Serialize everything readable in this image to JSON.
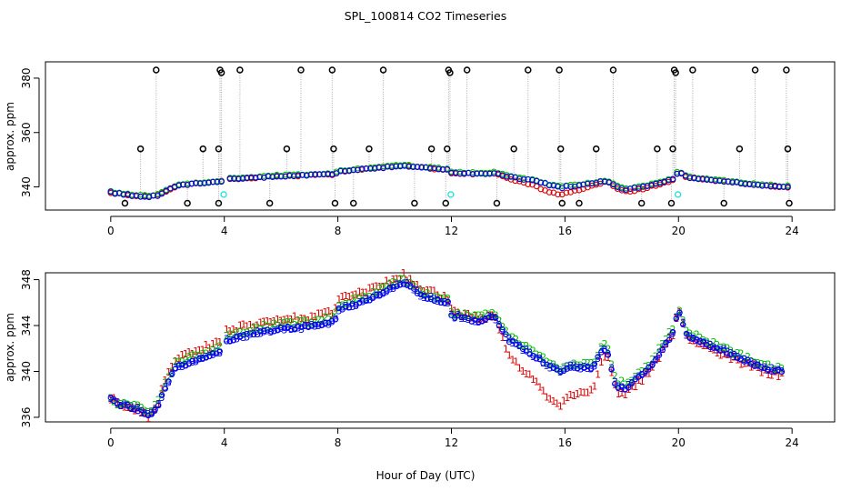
{
  "title": "SPL_100814  CO2 Timeseries",
  "colors": {
    "black": "#000000",
    "red": "#dd0000",
    "green": "#00bb00",
    "blue": "#0000ee",
    "cyan": "#22dddd",
    "spike": "#aaaaaa"
  },
  "chart_data": [
    {
      "type": "scatter",
      "panel": "top",
      "title": "SPL_100814  CO2 Timeseries",
      "xlabel": "",
      "ylabel": "approx. ppm",
      "xlim": [
        -2.3,
        25.5
      ],
      "ylim": [
        331.5,
        386
      ],
      "xticks": [
        0,
        4,
        8,
        12,
        16,
        20,
        24
      ],
      "xtick_labels": [
        "0",
        "4",
        "8",
        "12",
        "16",
        "20",
        "24"
      ],
      "yticks": [
        340,
        360,
        380
      ],
      "ytick_labels": [
        "340",
        "360",
        "380"
      ],
      "trend": {
        "x": [
          0,
          0.5,
          1.0,
          1.4,
          1.7,
          2.0,
          2.4,
          3.0,
          3.9,
          4.0,
          5.0,
          6.0,
          7.0,
          7.9,
          8.0,
          9.0,
          10.3,
          11.0,
          11.9,
          12.0,
          13.0,
          13.5,
          14.0,
          15.0,
          15.5,
          15.9,
          16.0,
          16.5,
          17.0,
          17.5,
          17.8,
          18.2,
          19.0,
          19.8,
          20.0,
          20.3,
          21.0,
          22.0,
          23.0,
          23.8
        ],
        "y": [
          338,
          337.2,
          336.6,
          336.4,
          337,
          338.8,
          340.6,
          341.3,
          342.0,
          342.7,
          343.4,
          344.0,
          344.3,
          344.7,
          345.7,
          346.6,
          347.8,
          347.1,
          346.3,
          345.2,
          344.8,
          345.2,
          343.8,
          342.2,
          340.4,
          339.8,
          340.2,
          340.4,
          341.4,
          342.2,
          340.2,
          339.0,
          340.6,
          342.8,
          345.7,
          343.6,
          342.6,
          341.6,
          340.6,
          340.0
        ]
      },
      "red_offset": [
        [
          0,
          0
        ],
        [
          13.5,
          0
        ],
        [
          14.5,
          -1.2
        ],
        [
          15.3,
          -2.5
        ],
        [
          15.9,
          -2.5
        ],
        [
          16.5,
          -1.5
        ],
        [
          17.0,
          -1.0
        ],
        [
          17.5,
          -0.3
        ],
        [
          18.2,
          -1.0
        ],
        [
          19.5,
          -0.4
        ],
        [
          20.0,
          0
        ],
        [
          24,
          0
        ]
      ],
      "black_spikes": [
        [
          0.5,
          334
        ],
        [
          1.05,
          354
        ],
        [
          1.6,
          383
        ],
        [
          2.7,
          334
        ],
        [
          3.25,
          354
        ],
        [
          3.8,
          334
        ],
        [
          3.8,
          354
        ],
        [
          3.85,
          383
        ],
        [
          3.9,
          382
        ],
        [
          4.55,
          383
        ],
        [
          5.6,
          334
        ],
        [
          6.2,
          354
        ],
        [
          6.7,
          383
        ],
        [
          7.8,
          383
        ],
        [
          7.85,
          354
        ],
        [
          7.9,
          334
        ],
        [
          8.55,
          334
        ],
        [
          9.1,
          354
        ],
        [
          9.6,
          383
        ],
        [
          10.7,
          334
        ],
        [
          11.3,
          354
        ],
        [
          11.8,
          334
        ],
        [
          11.85,
          354
        ],
        [
          11.9,
          383
        ],
        [
          11.95,
          382
        ],
        [
          12.55,
          383
        ],
        [
          13.6,
          334
        ],
        [
          14.2,
          354
        ],
        [
          14.7,
          383
        ],
        [
          15.8,
          383
        ],
        [
          15.85,
          354
        ],
        [
          15.9,
          334
        ],
        [
          16.5,
          334
        ],
        [
          17.1,
          354
        ],
        [
          17.7,
          383
        ],
        [
          18.7,
          334
        ],
        [
          19.25,
          354
        ],
        [
          19.75,
          334
        ],
        [
          19.8,
          354
        ],
        [
          19.85,
          383
        ],
        [
          19.9,
          382
        ],
        [
          20.5,
          383
        ],
        [
          21.6,
          334
        ],
        [
          22.15,
          354
        ],
        [
          22.7,
          383
        ],
        [
          23.8,
          383
        ],
        [
          23.85,
          354
        ],
        [
          23.9,
          334
        ]
      ],
      "cyan_points": [
        [
          3.98,
          337.2
        ],
        [
          11.98,
          337.2
        ],
        [
          19.98,
          337.2
        ]
      ]
    },
    {
      "type": "scatter",
      "panel": "bottom",
      "title": "",
      "xlabel": "Hour of Day (UTC)",
      "ylabel": "approx. ppm",
      "xlim": [
        -2.3,
        25.5
      ],
      "ylim": [
        335.6,
        348.6
      ],
      "xticks": [
        0,
        4,
        8,
        12,
        16,
        20,
        24
      ],
      "xtick_labels": [
        "0",
        "4",
        "8",
        "12",
        "16",
        "20",
        "24"
      ],
      "yticks": [
        336,
        340,
        344,
        348
      ],
      "ytick_labels": [
        "336",
        "340",
        "344",
        "348"
      ],
      "series": [
        {
          "name": "red",
          "marker": "1",
          "color": "#dd0000"
        },
        {
          "name": "green",
          "marker": "2",
          "color": "#00bb00"
        },
        {
          "name": "blue",
          "marker": "3",
          "color": "#0000ee"
        },
        {
          "name": "blue-circle",
          "marker": "o",
          "color": "#0000ee"
        }
      ],
      "trend": {
        "x": [
          0,
          0.3,
          0.6,
          1.0,
          1.3,
          1.5,
          1.7,
          2.0,
          2.3,
          3.0,
          3.9,
          4.0,
          5.0,
          6.0,
          7.0,
          7.9,
          8.0,
          9.0,
          10.3,
          11.0,
          11.9,
          12.0,
          13.0,
          13.5,
          14.0,
          15.0,
          15.5,
          15.9,
          16.0,
          16.5,
          17.0,
          17.3,
          17.5,
          17.8,
          18.2,
          19.0,
          19.8,
          20.0,
          20.3,
          21.0,
          22.0,
          23.0,
          23.6
        ],
        "y": [
          337.8,
          337.0,
          337.0,
          336.7,
          336.2,
          336.5,
          337.3,
          339.0,
          340.4,
          341.0,
          341.8,
          342.7,
          343.3,
          343.8,
          343.9,
          344.4,
          345.4,
          346.2,
          347.8,
          346.6,
          346.0,
          344.9,
          344.4,
          344.9,
          342.8,
          341.3,
          340.4,
          339.9,
          340.4,
          340.4,
          340.4,
          341.9,
          341.8,
          338.7,
          338.6,
          340.4,
          343.4,
          345.4,
          343.2,
          342.4,
          341.4,
          340.3,
          340.0
        ]
      },
      "red_offset": [
        [
          0,
          0
        ],
        [
          1.5,
          -0.2
        ],
        [
          2.0,
          0.8
        ],
        [
          4.0,
          0.8
        ],
        [
          8.0,
          0.8
        ],
        [
          10.3,
          0.6
        ],
        [
          12.0,
          0.4
        ],
        [
          13.5,
          0
        ],
        [
          14.0,
          -1.5
        ],
        [
          15.0,
          -2.0
        ],
        [
          15.3,
          -2.6
        ],
        [
          15.9,
          -2.8
        ],
        [
          16.5,
          -2.2
        ],
        [
          17.0,
          -2.0
        ],
        [
          17.5,
          -0.5
        ],
        [
          18.0,
          -0.5
        ],
        [
          19.0,
          -0.4
        ],
        [
          20.0,
          0
        ],
        [
          21.0,
          -0.3
        ],
        [
          23.0,
          -0.3
        ],
        [
          23.7,
          -0.2
        ]
      ],
      "green_offset": [
        [
          0,
          0
        ],
        [
          2.0,
          0.4
        ],
        [
          8.0,
          0.4
        ],
        [
          10.3,
          0.3
        ],
        [
          12.0,
          0.2
        ],
        [
          13.5,
          0.4
        ],
        [
          16.0,
          0.2
        ],
        [
          17.5,
          0.4
        ],
        [
          20.0,
          0.3
        ],
        [
          24,
          0.2
        ]
      ]
    }
  ]
}
